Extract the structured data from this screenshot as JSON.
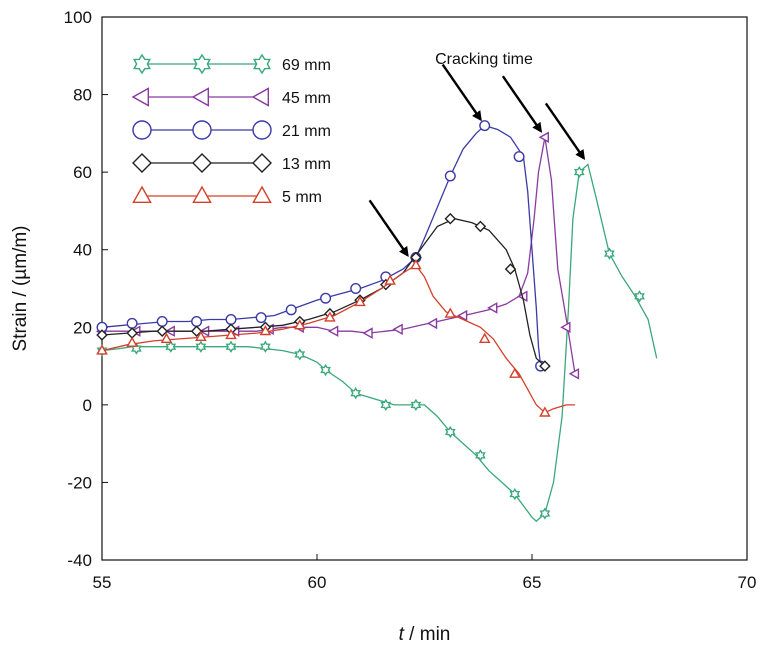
{
  "chart_data": {
    "type": "line",
    "title": "",
    "xlabel_var": "t",
    "xlabel_unit": " / min",
    "ylabel": "Strain / (µm/m)",
    "xlim": [
      55,
      70
    ],
    "ylim": [
      -40,
      100
    ],
    "xticks": [
      55,
      60,
      65,
      70
    ],
    "yticks": [
      -40,
      -20,
      0,
      20,
      40,
      60,
      80,
      100
    ],
    "grid": false,
    "legend_position": "top-left",
    "annotation": {
      "text": "Cracking time",
      "targets": [
        [
          62.2,
          37
        ],
        [
          63.9,
          72
        ],
        [
          65.3,
          69
        ],
        [
          66.3,
          62
        ]
      ]
    },
    "series": [
      {
        "name": "69 mm",
        "marker": "star",
        "color": "#3aa87a",
        "points": [
          [
            55.0,
            14
          ],
          [
            55.4,
            14.5
          ],
          [
            55.7,
            15
          ],
          [
            56.0,
            15
          ],
          [
            56.4,
            15
          ],
          [
            56.8,
            15
          ],
          [
            57.2,
            15
          ],
          [
            57.6,
            15
          ],
          [
            58.0,
            15
          ],
          [
            58.4,
            15
          ],
          [
            58.8,
            14.5
          ],
          [
            59.2,
            14
          ],
          [
            59.6,
            13
          ],
          [
            60.0,
            11
          ],
          [
            60.2,
            9
          ],
          [
            60.6,
            6
          ],
          [
            60.9,
            3
          ],
          [
            61.2,
            2
          ],
          [
            61.5,
            1
          ],
          [
            61.8,
            0
          ],
          [
            62.2,
            0
          ],
          [
            62.5,
            0
          ],
          [
            62.8,
            -3
          ],
          [
            63.1,
            -7
          ],
          [
            63.4,
            -10
          ],
          [
            63.7,
            -13
          ],
          [
            64.0,
            -17
          ],
          [
            64.3,
            -20
          ],
          [
            64.6,
            -23
          ],
          [
            64.8,
            -26
          ],
          [
            65.0,
            -29
          ],
          [
            65.1,
            -30
          ],
          [
            65.3,
            -28
          ],
          [
            65.5,
            -20
          ],
          [
            65.7,
            -3
          ],
          [
            65.85,
            25
          ],
          [
            65.95,
            48
          ],
          [
            66.1,
            60
          ],
          [
            66.3,
            62
          ],
          [
            66.5,
            53
          ],
          [
            66.8,
            39
          ],
          [
            67.1,
            33
          ],
          [
            67.4,
            28
          ],
          [
            67.7,
            22
          ],
          [
            67.9,
            12
          ]
        ],
        "markers": [
          [
            55.0,
            14
          ],
          [
            55.8,
            14.5
          ],
          [
            56.6,
            15
          ],
          [
            57.3,
            15
          ],
          [
            58.0,
            15
          ],
          [
            58.8,
            15
          ],
          [
            59.6,
            13
          ],
          [
            60.2,
            9
          ],
          [
            60.9,
            3
          ],
          [
            61.6,
            0
          ],
          [
            62.3,
            0
          ],
          [
            63.1,
            -7
          ],
          [
            63.8,
            -13
          ],
          [
            64.6,
            -23
          ],
          [
            65.3,
            -28
          ],
          [
            66.1,
            60
          ],
          [
            66.8,
            39
          ],
          [
            67.5,
            28
          ]
        ]
      },
      {
        "name": "45 mm",
        "marker": "triangle-left",
        "color": "#8a3aa0",
        "points": [
          [
            55.0,
            19
          ],
          [
            55.6,
            19
          ],
          [
            56.2,
            19
          ],
          [
            56.8,
            19
          ],
          [
            57.4,
            19
          ],
          [
            58.0,
            19
          ],
          [
            58.6,
            19
          ],
          [
            59.2,
            20
          ],
          [
            59.6,
            20
          ],
          [
            60.0,
            20
          ],
          [
            60.4,
            19
          ],
          [
            60.8,
            19
          ],
          [
            61.2,
            18.5
          ],
          [
            61.6,
            19
          ],
          [
            62.0,
            19.5
          ],
          [
            62.4,
            20.5
          ],
          [
            62.8,
            21.5
          ],
          [
            63.2,
            22.5
          ],
          [
            63.6,
            23.5
          ],
          [
            64.0,
            24.5
          ],
          [
            64.4,
            26
          ],
          [
            64.7,
            28
          ],
          [
            64.9,
            34
          ],
          [
            65.05,
            48
          ],
          [
            65.15,
            60
          ],
          [
            65.3,
            69
          ],
          [
            65.45,
            58
          ],
          [
            65.6,
            35
          ],
          [
            65.8,
            22
          ],
          [
            65.9,
            15
          ],
          [
            66.0,
            8
          ]
        ],
        "markers": [
          [
            55.0,
            19
          ],
          [
            55.8,
            19
          ],
          [
            56.6,
            19
          ],
          [
            57.4,
            19
          ],
          [
            58.1,
            19
          ],
          [
            58.9,
            19.5
          ],
          [
            59.6,
            20
          ],
          [
            60.4,
            19
          ],
          [
            61.2,
            18.5
          ],
          [
            61.9,
            19.5
          ],
          [
            62.7,
            21
          ],
          [
            63.4,
            23
          ],
          [
            64.1,
            25
          ],
          [
            64.8,
            28
          ],
          [
            65.3,
            69
          ],
          [
            65.8,
            20
          ],
          [
            66.0,
            8
          ]
        ]
      },
      {
        "name": "21 mm",
        "marker": "circle",
        "color": "#3a3aa8",
        "points": [
          [
            55.0,
            20
          ],
          [
            55.5,
            20.5
          ],
          [
            56.0,
            21
          ],
          [
            56.5,
            21.5
          ],
          [
            57.0,
            21.5
          ],
          [
            57.5,
            22
          ],
          [
            58.0,
            22
          ],
          [
            58.5,
            22.5
          ],
          [
            59.0,
            23
          ],
          [
            59.5,
            25
          ],
          [
            60.0,
            27
          ],
          [
            60.5,
            28.5
          ],
          [
            61.0,
            30
          ],
          [
            61.5,
            32
          ],
          [
            62.0,
            35
          ],
          [
            62.3,
            38
          ],
          [
            62.5,
            43
          ],
          [
            62.8,
            51
          ],
          [
            63.1,
            59
          ],
          [
            63.4,
            66
          ],
          [
            63.7,
            70
          ],
          [
            63.9,
            72
          ],
          [
            64.2,
            71
          ],
          [
            64.5,
            69
          ],
          [
            64.8,
            64
          ],
          [
            64.9,
            55
          ],
          [
            65.0,
            40
          ],
          [
            65.1,
            25
          ],
          [
            65.15,
            15
          ],
          [
            65.2,
            10
          ]
        ],
        "markers": [
          [
            55.0,
            20
          ],
          [
            55.7,
            21
          ],
          [
            56.4,
            21.5
          ],
          [
            57.2,
            21.5
          ],
          [
            58.0,
            22
          ],
          [
            58.7,
            22.5
          ],
          [
            59.4,
            24.5
          ],
          [
            60.2,
            27.5
          ],
          [
            60.9,
            30
          ],
          [
            61.6,
            33
          ],
          [
            62.3,
            38
          ],
          [
            63.1,
            59
          ],
          [
            63.9,
            72
          ],
          [
            64.7,
            64
          ],
          [
            65.2,
            10
          ]
        ]
      },
      {
        "name": "13 mm",
        "marker": "diamond",
        "color": "#222222",
        "points": [
          [
            55.0,
            18
          ],
          [
            55.6,
            18.5
          ],
          [
            56.2,
            19
          ],
          [
            56.8,
            19
          ],
          [
            57.4,
            19
          ],
          [
            58.0,
            19.5
          ],
          [
            58.6,
            20
          ],
          [
            59.2,
            20.5
          ],
          [
            59.8,
            22
          ],
          [
            60.4,
            24
          ],
          [
            61.0,
            27
          ],
          [
            61.5,
            30
          ],
          [
            62.0,
            34
          ],
          [
            62.4,
            40
          ],
          [
            62.8,
            46
          ],
          [
            63.2,
            48
          ],
          [
            63.6,
            47
          ],
          [
            64.0,
            45
          ],
          [
            64.4,
            40
          ],
          [
            64.6,
            35
          ],
          [
            64.8,
            27
          ],
          [
            64.95,
            18
          ],
          [
            65.1,
            12
          ],
          [
            65.3,
            10
          ]
        ],
        "markers": [
          [
            55.0,
            18
          ],
          [
            55.7,
            18.5
          ],
          [
            56.4,
            19
          ],
          [
            57.2,
            19
          ],
          [
            58.0,
            19.5
          ],
          [
            58.8,
            20
          ],
          [
            59.6,
            21.5
          ],
          [
            60.3,
            23.5
          ],
          [
            61.0,
            27
          ],
          [
            61.6,
            31
          ],
          [
            62.3,
            38
          ],
          [
            63.1,
            48
          ],
          [
            63.8,
            46
          ],
          [
            64.5,
            35
          ],
          [
            65.3,
            10
          ]
        ]
      },
      {
        "name": "5 mm",
        "marker": "triangle-up",
        "color": "#d4402a",
        "points": [
          [
            55.0,
            14
          ],
          [
            55.6,
            15.5
          ],
          [
            56.2,
            16.5
          ],
          [
            56.8,
            17
          ],
          [
            57.4,
            17.5
          ],
          [
            58.0,
            18
          ],
          [
            58.6,
            18.5
          ],
          [
            59.2,
            19.5
          ],
          [
            59.8,
            21
          ],
          [
            60.4,
            23
          ],
          [
            61.0,
            26.5
          ],
          [
            61.5,
            30
          ],
          [
            62.0,
            34
          ],
          [
            62.3,
            36
          ],
          [
            62.5,
            33
          ],
          [
            62.7,
            28
          ],
          [
            63.0,
            24
          ],
          [
            63.4,
            22
          ],
          [
            63.8,
            20
          ],
          [
            64.1,
            17
          ],
          [
            64.4,
            12
          ],
          [
            64.7,
            8
          ],
          [
            64.9,
            4
          ],
          [
            65.1,
            0
          ],
          [
            65.3,
            -2
          ],
          [
            65.5,
            -1
          ],
          [
            65.8,
            0
          ],
          [
            66.0,
            0
          ]
        ],
        "markers": [
          [
            55.0,
            14
          ],
          [
            55.7,
            16
          ],
          [
            56.5,
            17
          ],
          [
            57.3,
            17.5
          ],
          [
            58.0,
            18
          ],
          [
            58.8,
            19
          ],
          [
            59.6,
            20.5
          ],
          [
            60.3,
            22.5
          ],
          [
            61.0,
            26.5
          ],
          [
            61.7,
            32
          ],
          [
            62.3,
            36
          ],
          [
            63.1,
            23.5
          ],
          [
            63.9,
            17
          ],
          [
            64.6,
            8
          ],
          [
            65.3,
            -2
          ]
        ]
      }
    ]
  }
}
